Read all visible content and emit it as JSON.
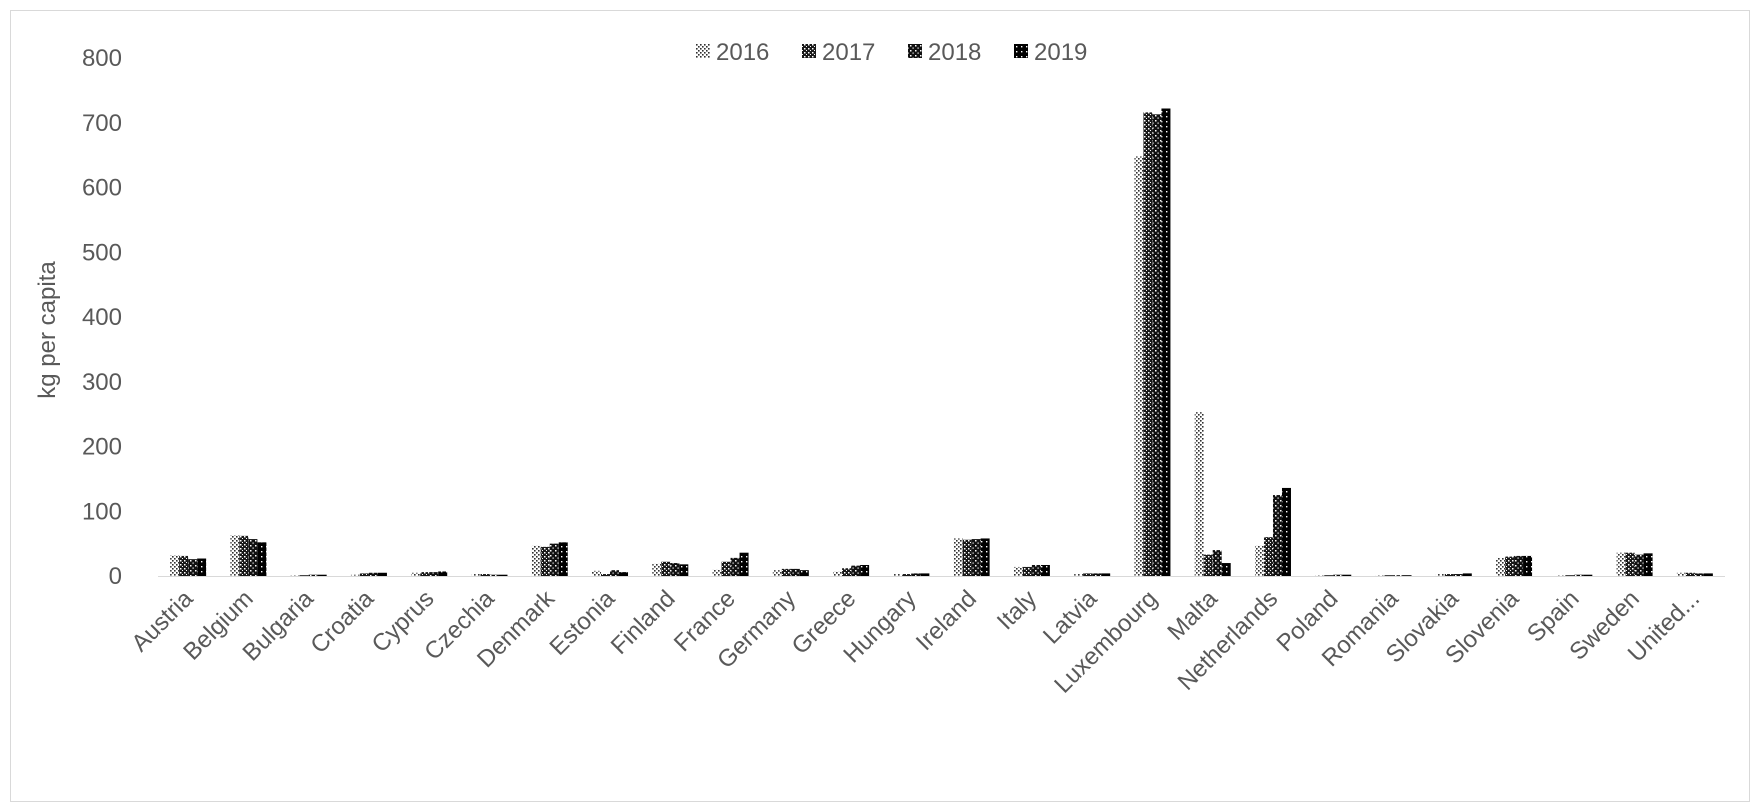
{
  "chart_data": {
    "type": "bar",
    "title": "",
    "xlabel": "",
    "ylabel": "kg per capita",
    "ylim": [
      0,
      800
    ],
    "yticks": [
      "0",
      "100",
      "200",
      "300",
      "400",
      "500",
      "600",
      "700",
      "800"
    ],
    "grid": false,
    "legend_position": "top-center",
    "categories": [
      "Austria",
      "Belgium",
      "Bulgaria",
      "Croatia",
      "Cyprus",
      "Czechia",
      "Denmark",
      "Estonia",
      "Finland",
      "France",
      "Germany",
      "Greece",
      "Hungary",
      "Ireland",
      "Italy",
      "Latvia",
      "Luxembourg",
      "Malta",
      "Netherlands",
      "Poland",
      "Romania",
      "Slovakia",
      "Slovenia",
      "Spain",
      "Sweden",
      "United..."
    ],
    "series": [
      {
        "name": "2016",
        "values": [
          32,
          63,
          1,
          2,
          5,
          3,
          47,
          8,
          19,
          10,
          9,
          7,
          3,
          58,
          14,
          3,
          648,
          253,
          47,
          1,
          1,
          3,
          28,
          1,
          36,
          5
        ]
      },
      {
        "name": "2017",
        "values": [
          31,
          62,
          1,
          4,
          6,
          3,
          45,
          3,
          22,
          22,
          11,
          12,
          3,
          56,
          14,
          4,
          716,
          33,
          60,
          1,
          1,
          3,
          30,
          1,
          36,
          5
        ]
      },
      {
        "name": "2018",
        "values": [
          26,
          57,
          2,
          5,
          6,
          2,
          50,
          9,
          20,
          28,
          11,
          16,
          4,
          57,
          17,
          4,
          713,
          40,
          125,
          2,
          1,
          3,
          31,
          2,
          33,
          4
        ]
      },
      {
        "name": "2019",
        "values": [
          27,
          52,
          2,
          5,
          7,
          2,
          52,
          6,
          18,
          36,
          9,
          17,
          4,
          58,
          17,
          4,
          722,
          20,
          136,
          2,
          1,
          4,
          31,
          2,
          35,
          4
        ]
      }
    ],
    "series_fills": [
      "pat2016",
      "pat2017",
      "pat2018",
      "pat2019"
    ]
  }
}
